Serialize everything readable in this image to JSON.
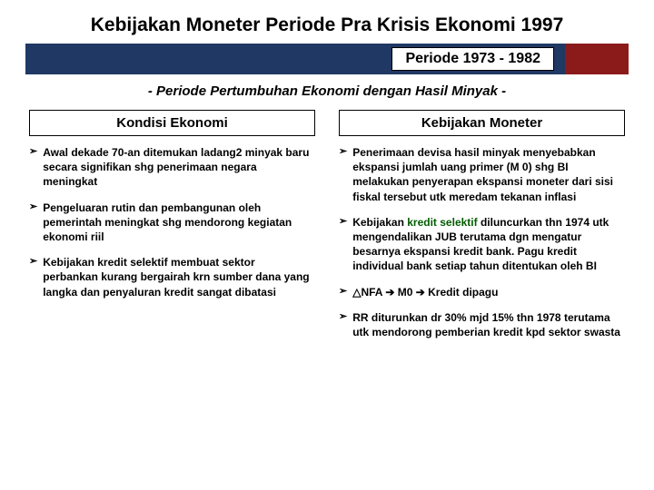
{
  "title": "Kebijakan Moneter Periode Pra Krisis Ekonomi 1997",
  "period_label": "Periode 1973 - 1982",
  "subtitle": "- Periode Pertumbuhan Ekonomi dengan Hasil Minyak -",
  "colors": {
    "band_blue": "#203864",
    "band_red": "#8b1a1a",
    "text": "#000000",
    "accent_green": "#005c00",
    "background": "#ffffff"
  },
  "left": {
    "header": "Kondisi Ekonomi",
    "items": [
      "Awal dekade 70-an ditemukan ladang2 minyak baru secara signifikan shg penerimaan negara meningkat",
      "Pengeluaran rutin dan pembangunan oleh pemerintah meningkat shg mendorong kegiatan ekonomi riil",
      "Kebijakan kredit selektif membuat sektor perbankan kurang bergairah krn sumber dana yang langka dan penyaluran kredit sangat dibatasi"
    ]
  },
  "right": {
    "header": "Kebijakan Moneter",
    "items": [
      "Penerimaan devisa hasil minyak menyebabkan ekspansi jumlah uang primer (M 0) shg BI melakukan penyerapan ekspansi moneter dari sisi fiskal tersebut utk meredam tekanan inflasi",
      "Kebijakan |kredit selektif| diluncurkan thn 1974 utk mengendalikan JUB terutama dgn mengatur besarnya ekspansi kredit bank. Pagu kredit individual bank setiap tahun ditentukan oleh BI",
      "△NFA   ➔ M0   ➔  Kredit dipagu",
      "RR diturunkan dr 30% mjd 15% thn 1978 terutama utk mendorong pemberian kredit kpd sektor swasta"
    ]
  },
  "bullet_glyph": "➢"
}
